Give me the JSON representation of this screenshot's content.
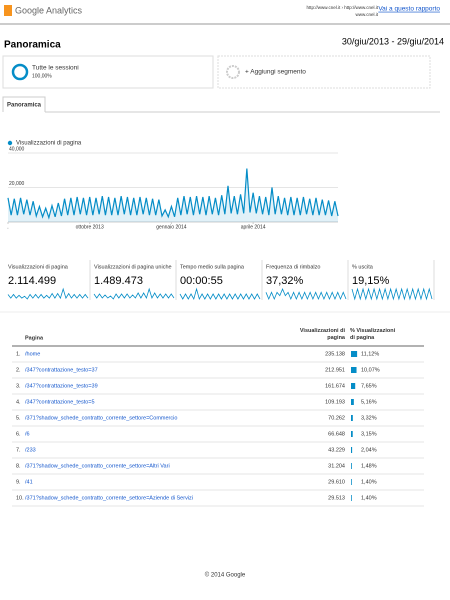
{
  "header": {
    "logo": "Google Analytics",
    "urls": "http://www.cnel.it › http://www.cnel.it",
    "site": "www.cnel.it",
    "link": "Vai a questo rapporto",
    "title": "Panoramica",
    "date_range": "30/giu/2013 - 29/giu/2014"
  },
  "segments": {
    "name": "Tutte le sessioni",
    "share": "100,00%",
    "add": "+ Aggiungi segmento"
  },
  "tab": "Panoramica",
  "chart_data": {
    "type": "line",
    "legend": "Visualizzazioni di pagina",
    "color": "#058dc7",
    "values": [
      14000,
      4000,
      13500,
      4000,
      14000,
      4500,
      13000,
      4000,
      12000,
      3500,
      9000,
      3000,
      8000,
      2500,
      9500,
      3000,
      11000,
      3500,
      13500,
      4000,
      14000,
      4000,
      14500,
      4500,
      14000,
      4000,
      14500,
      4000,
      14000,
      4500,
      15000,
      4000,
      14500,
      4000,
      14000,
      4000,
      15000,
      4500,
      14500,
      4000,
      14000,
      4000,
      14500,
      4500,
      14000,
      4000,
      13500,
      4000,
      13000,
      3500,
      7000,
      3000,
      9000,
      3000,
      14000,
      4000,
      15000,
      4500,
      14500,
      4000,
      15000,
      4500,
      14500,
      4000,
      15000,
      4500,
      14000,
      4000,
      15500,
      4500,
      21000,
      5000,
      15000,
      4500,
      16000,
      5000,
      31000,
      5500,
      17000,
      5000,
      15000,
      4500,
      14500,
      4000,
      20000,
      4500,
      15000,
      4500,
      14000,
      4000,
      14500,
      4000,
      14000,
      4000,
      14500,
      4500,
      13500,
      4000,
      14000,
      4000,
      13000,
      4000,
      12500,
      3500,
      12000,
      3500
    ],
    "xlim": [
      0,
      105
    ],
    "xticks": [
      {
        "value": 0,
        "label": "."
      },
      {
        "value": 26,
        "label": "ottobre 2013"
      },
      {
        "value": 52,
        "label": "gennaio 2014"
      },
      {
        "value": 78,
        "label": "aprile 2014"
      }
    ],
    "ylim": [
      0,
      40000
    ],
    "yticks": [
      {
        "value": 20000,
        "label": "20,000"
      },
      {
        "value": 40000,
        "label": "40,000"
      }
    ],
    "grid": true
  },
  "metrics": [
    {
      "label": "Visualizzazioni di pagina",
      "value": "2.114.499",
      "spark": [
        6,
        2,
        6,
        2,
        5,
        2,
        4,
        1,
        6,
        2,
        6,
        2,
        6,
        2,
        5,
        2,
        7,
        2,
        7,
        2,
        12,
        2,
        7,
        2,
        6,
        2,
        6,
        2,
        6,
        2
      ]
    },
    {
      "label": "Visualizzazioni di pagina uniche",
      "value": "1.489.473",
      "spark": [
        6,
        2,
        6,
        2,
        5,
        2,
        4,
        1,
        6,
        2,
        6,
        2,
        6,
        2,
        5,
        2,
        7,
        2,
        7,
        2,
        11,
        2,
        7,
        2,
        6,
        2,
        6,
        2,
        6,
        2
      ]
    },
    {
      "label": "Tempo medio sulla pagina",
      "value": "00:00:55",
      "spark": [
        5,
        4,
        5,
        4,
        5,
        4,
        6,
        4,
        5,
        4,
        5,
        4,
        5,
        4,
        5,
        4,
        5,
        4,
        5,
        4,
        5,
        4,
        5,
        4,
        5,
        4,
        5,
        4,
        5,
        4
      ]
    },
    {
      "label": "Frequenza di rimbalzo",
      "value": "37,32%",
      "spark": [
        6,
        4,
        6,
        4,
        6,
        5,
        7,
        5,
        6,
        4,
        6,
        4,
        6,
        4,
        6,
        4,
        6,
        4,
        6,
        4,
        6,
        4,
        6,
        4,
        6,
        4,
        6,
        4,
        6,
        4
      ]
    },
    {
      "label": "% uscita",
      "value": "19,15%",
      "spark": [
        3,
        2,
        3,
        2,
        3,
        2,
        3,
        2,
        3,
        2,
        3,
        2,
        3,
        2,
        3,
        2,
        3,
        2,
        3,
        2,
        3,
        2,
        3,
        2,
        3,
        2,
        3,
        2,
        3,
        2
      ]
    }
  ],
  "table": {
    "headers": [
      "Pagina",
      "Visualizzazioni di pagina",
      "% Visualizzazioni di pagina"
    ],
    "rows": [
      {
        "rank": "1.",
        "page": "/home",
        "views": "235.138",
        "pct": 11.12,
        "pct_label": "11,12%"
      },
      {
        "rank": "2.",
        "page": "/347?contrattazione_testo=37",
        "views": "212.951",
        "pct": 10.07,
        "pct_label": "10,07%"
      },
      {
        "rank": "3.",
        "page": "/347?contrattazione_testo=39",
        "views": "161.674",
        "pct": 7.65,
        "pct_label": "7,65%"
      },
      {
        "rank": "4.",
        "page": "/347?contrattazione_testo=5",
        "views": "109.193",
        "pct": 5.16,
        "pct_label": "5,16%"
      },
      {
        "rank": "5.",
        "page": "/371?shadow_schede_contratto_corrente_settore=Commercio",
        "views": "70.262",
        "pct": 3.32,
        "pct_label": "3,32%"
      },
      {
        "rank": "6.",
        "page": "/6",
        "views": "66.648",
        "pct": 3.15,
        "pct_label": "3,15%"
      },
      {
        "rank": "7.",
        "page": "/233",
        "views": "43.229",
        "pct": 2.04,
        "pct_label": "2,04%"
      },
      {
        "rank": "8.",
        "page": "/371?shadow_schede_contratto_corrente_settore=Altri Vari",
        "views": "31.204",
        "pct": 1.48,
        "pct_label": "1,48%"
      },
      {
        "rank": "9.",
        "page": "/41",
        "views": "29.610",
        "pct": 1.4,
        "pct_label": "1,40%"
      },
      {
        "rank": "10.",
        "page": "/371?shadow_schede_contratto_corrente_settore=Aziende di Servizi",
        "views": "29.513",
        "pct": 1.4,
        "pct_label": "1,40%"
      }
    ]
  },
  "footer": "© 2014 Google"
}
